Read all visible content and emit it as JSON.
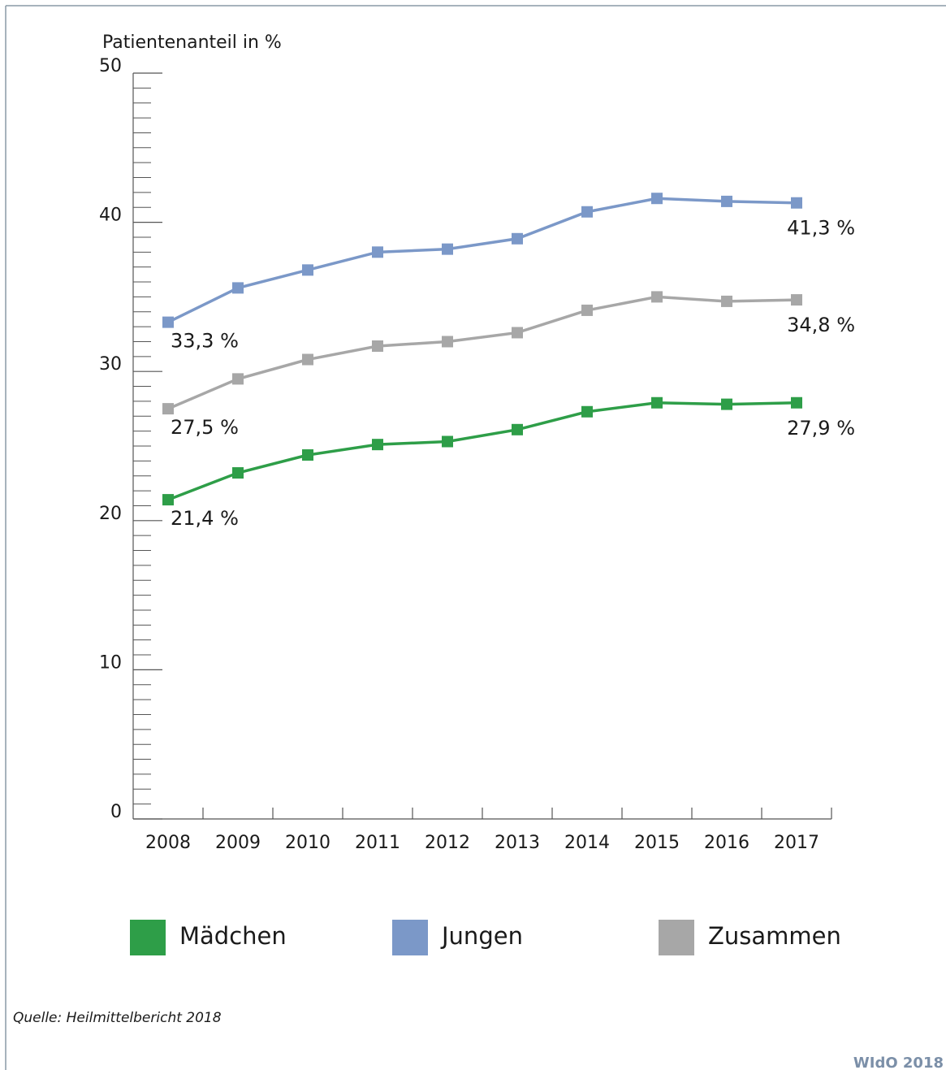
{
  "chart_data": {
    "type": "line",
    "y_label": "Patientenanteil in %",
    "categories": [
      "2008",
      "2009",
      "2010",
      "2011",
      "2012",
      "2013",
      "2014",
      "2015",
      "2016",
      "2017"
    ],
    "series": [
      {
        "name": "Mädchen",
        "color": "#2e9e48",
        "values": [
          21.4,
          23.2,
          24.4,
          25.1,
          25.3,
          26.1,
          27.3,
          27.9,
          27.8,
          27.9
        ],
        "value_labels": [
          "21,4 %",
          null,
          null,
          null,
          null,
          null,
          null,
          null,
          null,
          "27,9 %"
        ]
      },
      {
        "name": "Jungen",
        "color": "#7b98c8",
        "values": [
          33.3,
          35.6,
          36.8,
          38.0,
          38.2,
          38.9,
          40.7,
          41.6,
          41.4,
          41.3
        ],
        "value_labels": [
          "33,3 %",
          null,
          null,
          null,
          null,
          null,
          null,
          null,
          null,
          "41,3 %"
        ]
      },
      {
        "name": "Zusammen",
        "color": "#a7a7a7",
        "values": [
          27.5,
          29.5,
          30.8,
          31.7,
          32.0,
          32.6,
          34.1,
          35.0,
          34.7,
          34.8
        ],
        "value_labels": [
          "27,5 %",
          null,
          null,
          null,
          null,
          null,
          null,
          null,
          null,
          "34,8 %"
        ]
      }
    ],
    "ylim": [
      0,
      50
    ],
    "yticks": [
      0,
      10,
      20,
      30,
      40,
      50
    ],
    "source": "Quelle: Heilmittelbericht 2018",
    "credit": "WIdO 2018"
  }
}
